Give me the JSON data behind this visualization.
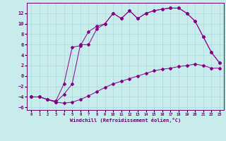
{
  "xlabel": "Windchill (Refroidissement éolien,°C)",
  "xlim": [
    -0.5,
    23.5
  ],
  "ylim": [
    -6.5,
    14.0
  ],
  "xticks": [
    0,
    1,
    2,
    3,
    4,
    5,
    6,
    7,
    8,
    9,
    10,
    11,
    12,
    13,
    14,
    15,
    16,
    17,
    18,
    19,
    20,
    21,
    22,
    23
  ],
  "yticks": [
    -6,
    -4,
    -2,
    0,
    2,
    4,
    6,
    8,
    10,
    12
  ],
  "background_color": "#c8ecec",
  "grid_color": "#a8d8d8",
  "line_color": "#880088",
  "curve1_x": [
    0,
    1,
    2,
    3,
    4,
    5,
    6,
    7,
    8,
    9,
    10,
    11,
    12,
    13,
    14,
    15,
    16,
    17,
    18,
    19,
    20,
    21,
    22,
    23
  ],
  "curve1_y": [
    -4.0,
    -4.0,
    -4.5,
    -5.0,
    -5.2,
    -5.0,
    -4.5,
    -3.8,
    -3.0,
    -2.2,
    -1.5,
    -1.0,
    -0.5,
    0.0,
    0.5,
    1.0,
    1.3,
    1.5,
    1.8,
    2.0,
    2.3,
    2.0,
    1.5,
    1.5
  ],
  "curve2_x": [
    0,
    1,
    2,
    3,
    4,
    5,
    6,
    7,
    8,
    9,
    10,
    11,
    12,
    13,
    14,
    15,
    16,
    17,
    18,
    19,
    20,
    21,
    22,
    23
  ],
  "curve2_y": [
    -4.0,
    -4.0,
    -4.5,
    -5.0,
    -3.5,
    -1.5,
    6.0,
    6.0,
    9.0,
    10.0,
    12.0,
    11.0,
    12.5,
    11.0,
    12.0,
    12.5,
    12.8,
    13.0,
    13.0,
    12.0,
    10.5,
    7.5,
    4.5,
    2.5
  ],
  "curve3_x": [
    0,
    1,
    2,
    3,
    4,
    5,
    6,
    7,
    8,
    9,
    10,
    11,
    12,
    13,
    14,
    15,
    16,
    17,
    18,
    19,
    20,
    21,
    22,
    23
  ],
  "curve3_y": [
    -4.0,
    -4.0,
    -4.5,
    -4.8,
    -1.5,
    5.5,
    5.8,
    8.5,
    9.5,
    10.0,
    12.0,
    11.0,
    12.5,
    11.0,
    12.0,
    12.5,
    12.8,
    13.0,
    13.0,
    12.0,
    10.5,
    7.5,
    4.5,
    2.5
  ]
}
